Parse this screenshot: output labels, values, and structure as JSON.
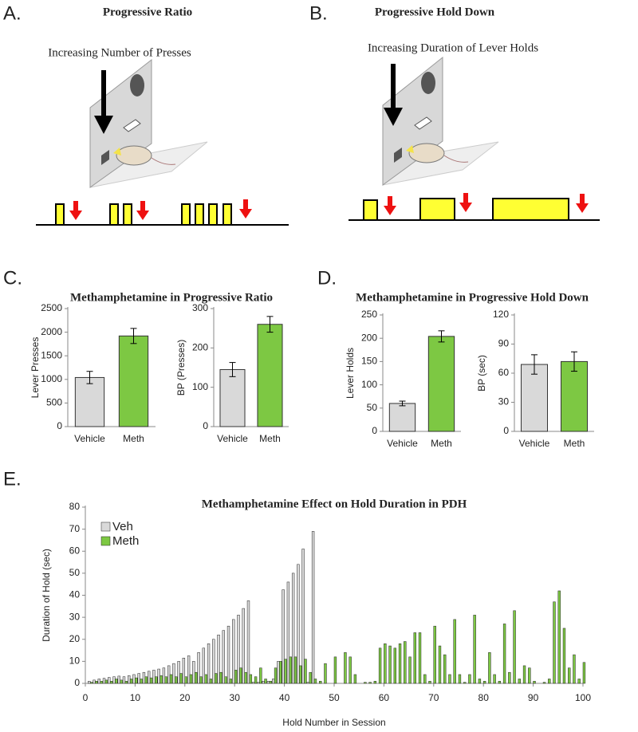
{
  "panels": {
    "A": {
      "label": "A.",
      "title": "Progressive Ratio",
      "caption": "Increasing Number of Presses"
    },
    "B": {
      "label": "B.",
      "title": "Progressive Hold Down",
      "caption": "Increasing Duration of Lever Holds"
    },
    "C": {
      "label": "C.",
      "title": "Methamphetamine in Progressive Ratio"
    },
    "D": {
      "label": "D.",
      "title": "Methamphetamine in Progressive Hold Down"
    },
    "E": {
      "label": "E."
    }
  },
  "chart_data": [
    {
      "type": "bar",
      "ylabel": "Lever Presses",
      "categories": [
        "Vehicle",
        "Meth"
      ],
      "values": [
        1040,
        1920
      ],
      "errors": [
        130,
        160
      ],
      "colors": [
        "#d9d9d9",
        "#7dc843"
      ],
      "ylim": [
        0,
        2500
      ],
      "yticks": [
        0,
        500,
        1000,
        1500,
        2000,
        2500
      ]
    },
    {
      "type": "bar",
      "ylabel": "BP (Presses)",
      "categories": [
        "Vehicle",
        "Meth"
      ],
      "values": [
        145,
        260
      ],
      "errors": [
        18,
        20
      ],
      "colors": [
        "#d9d9d9",
        "#7dc843"
      ],
      "ylim": [
        0,
        300
      ],
      "yticks": [
        0,
        100,
        200,
        300
      ]
    },
    {
      "type": "bar",
      "ylabel": "Lever Holds",
      "categories": [
        "Vehicle",
        "Meth"
      ],
      "values": [
        60,
        204
      ],
      "errors": [
        5,
        12
      ],
      "colors": [
        "#d9d9d9",
        "#7dc843"
      ],
      "ylim": [
        0,
        250
      ],
      "yticks": [
        0,
        50,
        100,
        150,
        200,
        250
      ]
    },
    {
      "type": "bar",
      "ylabel": "BP (sec)",
      "categories": [
        "Vehicle",
        "Meth"
      ],
      "values": [
        69,
        72
      ],
      "errors": [
        10,
        10
      ],
      "colors": [
        "#d9d9d9",
        "#7dc843"
      ],
      "ylim": [
        0,
        120
      ],
      "yticks": [
        0,
        30,
        60,
        90,
        120
      ]
    },
    {
      "type": "bar",
      "title": "Methamphetamine Effect on Hold Duration in PDH",
      "xlabel": "Hold Number in Session",
      "ylabel": "Duration of Hold (sec)",
      "legend": "upper left",
      "xlim": [
        0,
        100
      ],
      "xticks": [
        0,
        10,
        20,
        30,
        40,
        50,
        60,
        70,
        80,
        90,
        100
      ],
      "ylim": [
        0,
        80
      ],
      "yticks": [
        0,
        10,
        20,
        30,
        40,
        50,
        60,
        70,
        80
      ],
      "x": [
        1,
        2,
        3,
        4,
        5,
        6,
        7,
        8,
        9,
        10,
        11,
        12,
        13,
        14,
        15,
        16,
        17,
        18,
        19,
        20,
        21,
        22,
        23,
        24,
        25,
        26,
        27,
        28,
        29,
        30,
        31,
        32,
        33,
        34,
        35,
        36,
        37,
        38,
        39,
        40,
        41,
        42,
        43,
        44,
        45,
        46,
        47,
        48,
        49,
        50,
        51,
        52,
        53,
        54,
        55,
        56,
        57,
        58,
        59,
        60,
        61,
        62,
        63,
        64,
        65,
        66,
        67,
        68,
        69,
        70,
        71,
        72,
        73,
        74,
        75,
        76,
        77,
        78,
        79,
        80,
        81,
        82,
        83,
        84,
        85,
        86,
        87,
        88,
        89,
        90,
        91,
        92,
        93,
        94,
        95,
        96,
        97,
        98,
        99,
        100
      ],
      "series": [
        {
          "name": "Veh",
          "color": "#d9d9d9",
          "values": [
            1,
            1.5,
            2,
            2.3,
            2.7,
            3,
            3.3,
            3,
            3.5,
            4,
            4.5,
            5,
            5.5,
            6,
            6.5,
            7,
            8,
            9,
            10,
            11.5,
            12.5,
            10,
            14,
            16,
            18,
            20,
            22,
            24,
            26,
            29,
            31,
            34,
            37.5,
            0.5,
            0.5,
            1,
            1,
            2,
            10,
            42.5,
            46,
            50,
            54,
            61,
            0.5,
            69,
            0,
            0,
            0,
            0,
            0,
            0,
            0,
            0,
            0,
            0,
            0,
            0,
            0,
            0,
            0,
            0,
            0,
            0,
            0,
            0,
            0,
            0,
            0,
            0,
            0,
            0,
            0,
            0,
            0,
            0,
            0,
            0,
            0,
            0,
            0,
            0,
            0,
            0,
            0,
            0,
            0,
            0,
            0,
            0,
            0,
            0,
            0,
            0,
            0,
            0,
            0,
            0,
            0,
            0
          ]
        },
        {
          "name": "Meth",
          "color": "#7dc843",
          "values": [
            0.5,
            1,
            1,
            1.5,
            1,
            2,
            1.5,
            1,
            2,
            2.5,
            2,
            3,
            2.5,
            3,
            3.5,
            3,
            4,
            3,
            4.5,
            3,
            4,
            5,
            3,
            4,
            2,
            4.5,
            5,
            3,
            2,
            6,
            7,
            5,
            4,
            3,
            7,
            2,
            1,
            7,
            10,
            11,
            12,
            12,
            8,
            11,
            5,
            2,
            1,
            9,
            0,
            12,
            0,
            14,
            12,
            4,
            0,
            0.5,
            0.5,
            1,
            16,
            18,
            17,
            16,
            18,
            19,
            12,
            23,
            23,
            4,
            1,
            26,
            17,
            13,
            4,
            29,
            4,
            0.5,
            4,
            31,
            2,
            1,
            14,
            4,
            1,
            27,
            5,
            33,
            2,
            8,
            7,
            1,
            0,
            0.5,
            2,
            37,
            42,
            25,
            7,
            13,
            2,
            9.5
          ]
        }
      ]
    }
  ]
}
